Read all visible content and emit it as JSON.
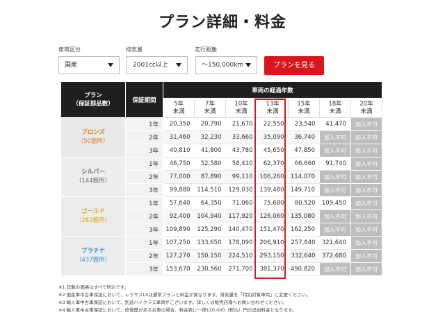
{
  "title": "プラン詳細・料金",
  "filters": {
    "vehicle_type": {
      "label": "車両区分",
      "value": "国産"
    },
    "displacement": {
      "label": "排気量",
      "value": "2001cc以上"
    },
    "mileage": {
      "label": "走行距離",
      "value": "〜150,000km"
    },
    "submit_label": "プランを見る"
  },
  "table": {
    "plan_header": "プラン\n（保証部品数）",
    "period_header": "保証期間",
    "age_header": "車両の経過年数",
    "age_columns": [
      "5年\n未満",
      "7年\n未満",
      "10年\n未満",
      "13年\n未満",
      "15年\n未満",
      "18年\n未満",
      "20年\n未満"
    ],
    "na_text": "加入不可",
    "plans": [
      {
        "name": "ブロンズ",
        "parts": "（50箇所）",
        "color": "#e07a1f",
        "bg": "#e9e9e9",
        "rows": [
          {
            "period": "1年",
            "values": [
              "20,350",
              "20,790",
              "21,670",
              "22,550",
              "23,540",
              "41,470",
              "加入不可"
            ]
          },
          {
            "period": "2年",
            "values": [
              "31,460",
              "32,230",
              "33,660",
              "35,090",
              "36,740",
              "加入不可",
              "加入不可"
            ]
          },
          {
            "period": "3年",
            "values": [
              "40,810",
              "41,800",
              "43,780",
              "45,650",
              "47,850",
              "加入不可",
              "加入不可"
            ]
          }
        ]
      },
      {
        "name": "シルバー",
        "parts": "（144箇所）",
        "color": "#666666",
        "bg": "#ededed",
        "rows": [
          {
            "period": "1年",
            "values": [
              "46,750",
              "52,580",
              "58,410",
              "62,370",
              "66,660",
              "91,740",
              "加入不可"
            ]
          },
          {
            "period": "2年",
            "values": [
              "77,000",
              "87,890",
              "99,110",
              "106,260",
              "114,070",
              "加入不可",
              "加入不可"
            ]
          },
          {
            "period": "3年",
            "values": [
              "99,880",
              "114,510",
              "129,030",
              "139,480",
              "149,710",
              "加入不可",
              "加入不可"
            ]
          }
        ]
      },
      {
        "name": "ゴールド",
        "parts": "（282箇所）",
        "color": "#e0a21f",
        "bg": "#ececec",
        "rows": [
          {
            "period": "1年",
            "values": [
              "57,640",
              "64,350",
              "71,060",
              "75,680",
              "80,520",
              "109,450",
              "加入不可"
            ]
          },
          {
            "period": "2年",
            "values": [
              "92,400",
              "104,940",
              "117,920",
              "126,060",
              "135,080",
              "加入不可",
              "加入不可"
            ]
          },
          {
            "period": "3年",
            "values": [
              "109,890",
              "125,290",
              "140,470",
              "151,470",
              "162,250",
              "加入不可",
              "加入不可"
            ]
          }
        ]
      },
      {
        "name": "プラチナ",
        "parts": "（437箇所）",
        "color": "#3a8fd0",
        "bg": "#ececec",
        "rows": [
          {
            "period": "1年",
            "values": [
              "107,250",
              "133,650",
              "178,090",
              "206,910",
              "257,840",
              "321,640",
              "加入不可"
            ]
          },
          {
            "period": "2年",
            "values": [
              "127,270",
              "150,150",
              "224,510",
              "293,150",
              "332,640",
              "372,680",
              "加入不可"
            ]
          },
          {
            "period": "3年",
            "values": [
              "153,670",
              "230,560",
              "271,700",
              "381,370",
              "490,820",
              "加入不可",
              "加入不可"
            ]
          }
        ]
      }
    ]
  },
  "notes": [
    "※1 記載の価格はすべて税込です。",
    "※2 国産車中古車保証において、レクサスLSは通常プランと料金が異なります。排気量を「特別対象車両」に変更ください。",
    "※3 輸入車中古車保証において、別途ハイクラス車両がございます。詳しくは販売店様へお問い合わせください。",
    "※4 輸入車中古車保証において、修復歴があるお車の場合、料金表に一律110,000（税込）円の追加料金となります。"
  ]
}
